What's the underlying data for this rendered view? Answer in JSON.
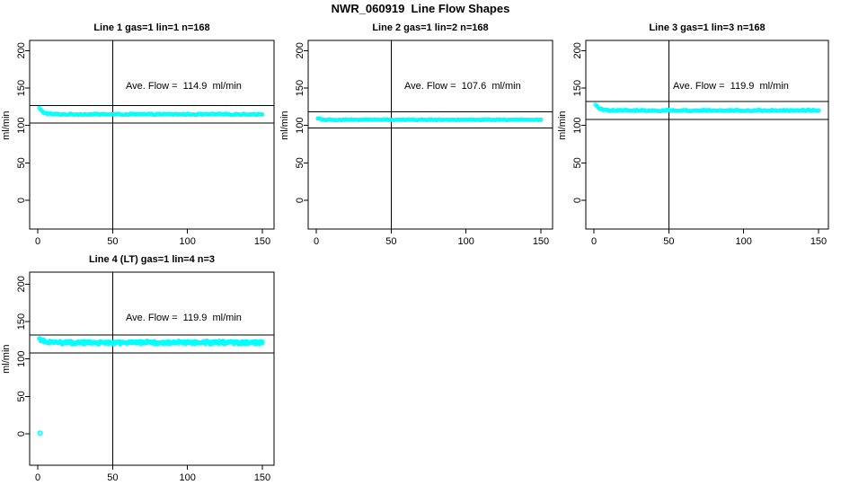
{
  "figure": {
    "title": "NWR_060919  Line Flow Shapes"
  },
  "colors": {
    "point": "#00FFFF",
    "axis": "#000000",
    "background": "#FFFFFF"
  },
  "chart_data": [
    {
      "type": "scatter",
      "title": "Line 1 gas=1 lin=1 n=168",
      "annotation": "Ave. Flow =  114.9  ml/min",
      "ave_flow_ml_min": 114.9,
      "n_points": 168,
      "ylabel": "ml/min",
      "xticks": [
        0,
        50,
        100,
        150
      ],
      "yticks": [
        0,
        50,
        100,
        150,
        200
      ],
      "xlim": [
        -5,
        158
      ],
      "ylim": [
        -40,
        215
      ],
      "vline_x": 50,
      "ref_lines": [
        126.4,
        103.4
      ],
      "points_model": {
        "x_start": 1,
        "x_end": 150,
        "n": 168,
        "start_value": 123,
        "steady_value": 114.9,
        "decay_points": 3,
        "noise": 0.8,
        "wiggle": 0,
        "repeats": 1
      },
      "outlier_points": []
    },
    {
      "type": "scatter",
      "title": "Line 2 gas=1 lin=2 n=168",
      "annotation": "Ave. Flow =  107.6  ml/min",
      "ave_flow_ml_min": 107.6,
      "n_points": 168,
      "ylabel": "ml/min",
      "xticks": [
        0,
        50,
        100,
        150
      ],
      "yticks": [
        0,
        50,
        100,
        150,
        200
      ],
      "xlim": [
        -5,
        158
      ],
      "ylim": [
        -40,
        215
      ],
      "vline_x": 50,
      "ref_lines": [
        118.4,
        96.8
      ],
      "points_model": {
        "x_start": 1,
        "x_end": 150,
        "n": 168,
        "start_value": 110,
        "steady_value": 107.7,
        "decay_points": 2,
        "noise": 0.6,
        "wiggle": 0,
        "repeats": 1
      },
      "outlier_points": []
    },
    {
      "type": "scatter",
      "title": "Line 3 gas=1 lin=3 n=168",
      "annotation": "Ave. Flow =  119.9  ml/min",
      "ave_flow_ml_min": 119.9,
      "n_points": 168,
      "ylabel": "ml/min",
      "xticks": [
        0,
        50,
        100,
        150
      ],
      "yticks": [
        0,
        50,
        100,
        150,
        200
      ],
      "xlim": [
        -5,
        158
      ],
      "ylim": [
        -40,
        215
      ],
      "vline_x": 50,
      "ref_lines": [
        131.9,
        107.9
      ],
      "points_model": {
        "x_start": 1,
        "x_end": 150,
        "n": 168,
        "start_value": 128,
        "steady_value": 120.0,
        "decay_points": 3,
        "noise": 0.8,
        "wiggle": 0,
        "repeats": 1
      },
      "outlier_points": []
    },
    {
      "type": "scatter",
      "title": "Line 4 (LT) gas=1 lin=4 n=3",
      "annotation": "Ave. Flow =  119.9  ml/min",
      "ave_flow_ml_min": 119.9,
      "n_points": 3,
      "ylabel": "ml/min",
      "xticks": [
        0,
        50,
        100,
        150
      ],
      "yticks": [
        0,
        50,
        100,
        150,
        200
      ],
      "xlim": [
        -5,
        158
      ],
      "ylim": [
        -40,
        215
      ],
      "vline_x": 50,
      "ref_lines": [
        131.9,
        107.9
      ],
      "points_model": {
        "x_start": 1,
        "x_end": 150,
        "n": 150,
        "start_value": 127,
        "steady_value": 122,
        "decay_points": 3,
        "noise": 1.6,
        "wiggle": 1.2,
        "repeats": 3
      },
      "outlier_points": [
        [
          1.5,
          1
        ]
      ]
    }
  ]
}
